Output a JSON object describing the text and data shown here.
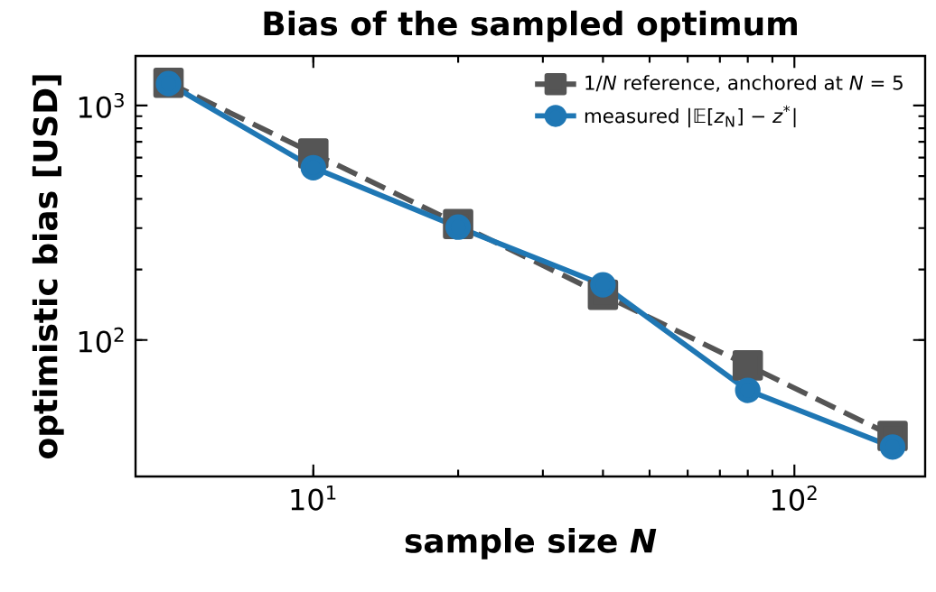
{
  "chart_data": {
    "type": "line",
    "title": "Bias of the sampled optimum",
    "xlabel": "sample size *N*",
    "ylabel": "optimistic bias [USD]",
    "x": [
      5,
      10,
      20,
      40,
      80,
      160
    ],
    "series": [
      {
        "name": "1/*N* reference, anchored at *N* = 5",
        "color": "#555555",
        "marker": "square",
        "line_style": "dashed",
        "values": [
          1250,
          625,
          312.5,
          156,
          78,
          39
        ]
      },
      {
        "name": "measured |𝔼[*z*$_{N}$] − *z*$^{*}$|",
        "color": "#1f77b4",
        "marker": "circle",
        "line_style": "solid",
        "values": [
          1240,
          543,
          303,
          172,
          61,
          35
        ]
      }
    ],
    "log": "xy",
    "xlim": [
      4.27,
      187
    ],
    "ylim": [
      26.2,
      1627
    ],
    "xticks": [
      {
        "value": 10,
        "label": "10$^{1}$"
      },
      {
        "value": 100,
        "label": "10$^{2}$"
      }
    ],
    "yticks": [
      {
        "value": 100,
        "label": "10$^{2}$"
      },
      {
        "value": 1000,
        "label": "10$^{3}$"
      }
    ],
    "grid": false,
    "legend": "top right"
  }
}
